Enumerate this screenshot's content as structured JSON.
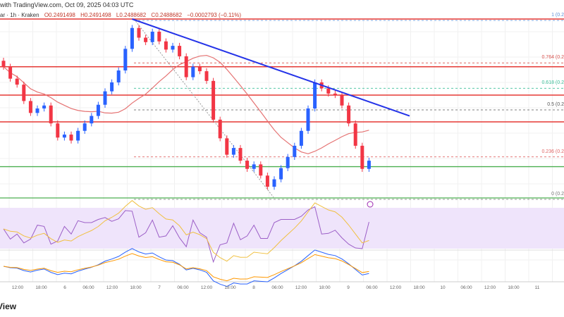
{
  "header": {
    "published": "with TradingView.com, Oct 09, 2025 04:03 UTC",
    "symbol": "ar · 1h · Kraken",
    "open": "O0.2491498",
    "high": "H0.2491498",
    "low": "L0.2488682",
    "close": "C0.2488682",
    "change": "−0.0002793 (−0.11%)"
  },
  "fib_labels": [
    {
      "label": "1 (0.2",
      "color": "#5b8fd9",
      "price": 0.264
    },
    {
      "label": "0.764 (0.2",
      "color": "#d9534f",
      "price": 0.2583
    },
    {
      "label": "0.618 (0.2",
      "color": "#3cbf9a",
      "price": 0.2549
    },
    {
      "label": "0.5 (0.2",
      "color": "#555555",
      "price": 0.252
    },
    {
      "label": "0.236 (0.2",
      "color": "#e06666",
      "price": 0.2457
    },
    {
      "label": "0 (0.2",
      "color": "#777777",
      "price": 0.24
    }
  ],
  "time_axis": [
    "12:00",
    "18:00",
    "6",
    "06:00",
    "12:00",
    "18:00",
    "7",
    "06:00",
    "12:00",
    "18:00",
    "8",
    "06:00",
    "12:00",
    "18:00",
    "9",
    "06:00",
    "12:00",
    "18:00",
    "10",
    "06:00",
    "12:00",
    "18:00",
    "11"
  ],
  "brand": "View",
  "colors": {
    "up": "#2962ff",
    "down": "#f23645",
    "trend": "#2433e8",
    "support": "#4caf50"
  },
  "chart_data": {
    "type": "candlestick",
    "price_range": [
      0.24,
      0.264
    ],
    "closes": [
      0.2576,
      0.256,
      0.2552,
      0.253,
      0.2514,
      0.252,
      0.2524,
      0.25,
      0.2481,
      0.2485,
      0.2477,
      0.249,
      0.25,
      0.251,
      0.2525,
      0.2543,
      0.2555,
      0.2571,
      0.26,
      0.2628,
      0.2615,
      0.2609,
      0.2623,
      0.261,
      0.2599,
      0.2604,
      0.259,
      0.2562,
      0.2576,
      0.257,
      0.2557,
      0.2505,
      0.248,
      0.2458,
      0.2467,
      0.245,
      0.2439,
      0.2445,
      0.243,
      0.2415,
      0.2425,
      0.244,
      0.2455,
      0.247,
      0.249,
      0.252,
      0.2555,
      0.2547,
      0.254,
      0.2538,
      0.2524,
      0.25,
      0.247,
      0.2439,
      0.245
    ],
    "resistance_levels": [
      0.264,
      0.2576,
      0.2538,
      0.2502
    ],
    "support_levels": [
      0.2442,
      0.24
    ],
    "trendline": [
      [
        0.264,
        19
      ],
      [
        0.251,
        60
      ]
    ]
  }
}
